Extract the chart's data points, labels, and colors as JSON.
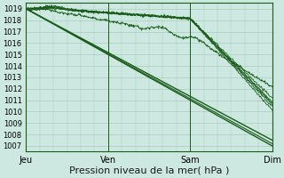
{
  "bg_color": "#cce8e0",
  "grid_color": "#aaccbb",
  "line_color": "#1a5c1a",
  "ylim": [
    1006.5,
    1019.5
  ],
  "yticks": [
    1007,
    1008,
    1009,
    1010,
    1011,
    1012,
    1013,
    1014,
    1015,
    1016,
    1017,
    1018,
    1019
  ],
  "xtick_labels": [
    "Jeu",
    "Ven",
    "Sam",
    "Dim"
  ],
  "xlabel": "Pression niveau de la mer( hPa )",
  "xlabel_fontsize": 8,
  "ytick_fontsize": 6,
  "xtick_fontsize": 7
}
